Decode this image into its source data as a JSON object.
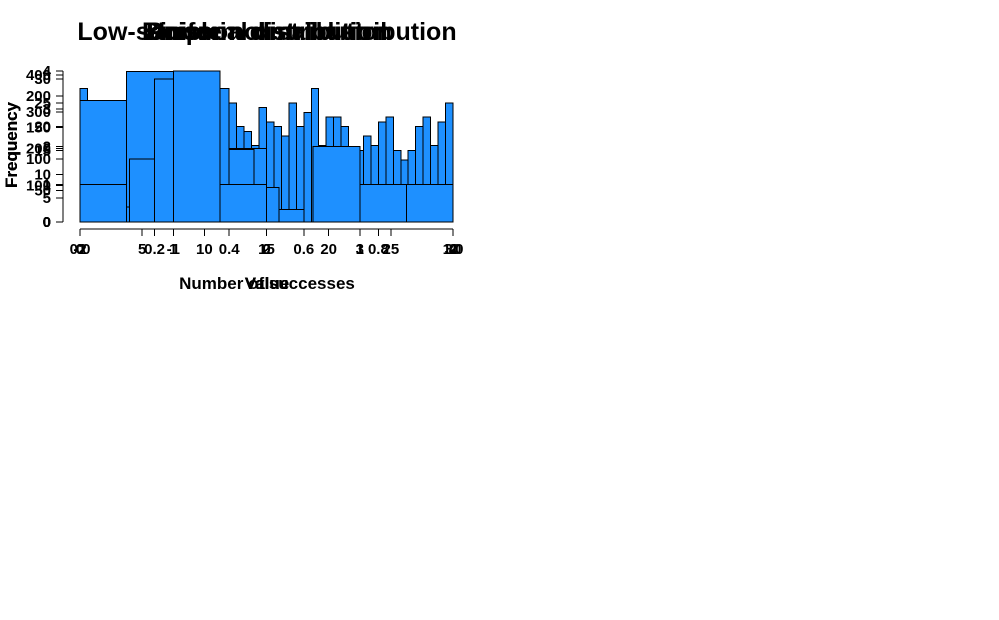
{
  "colors": {
    "background": "#FFFFFF",
    "bar_fill": "#1E90FF",
    "bar_border": "#000000",
    "axis_color": "#000000",
    "text_color": "#000000"
  },
  "chart_data": [
    {
      "id": "uniform",
      "type": "bar",
      "title": "Uniform distribution",
      "xlabel": "Value",
      "ylabel": "Frequency",
      "bin_start": 0,
      "bin_width": 0.02,
      "values": [
        28,
        24,
        16,
        15,
        16,
        20,
        21,
        13,
        17,
        30,
        20,
        19,
        17,
        29,
        31,
        19,
        20,
        16,
        14,
        24,
        25,
        20,
        19,
        16,
        24,
        21,
        20,
        18,
        25,
        20,
        23,
        28,
        16,
        22,
        22,
        20,
        13,
        15,
        18,
        16,
        21,
        22,
        15,
        13,
        15,
        20,
        22,
        16,
        21,
        25
      ],
      "xlim": [
        0,
        1
      ],
      "ylim": [
        0,
        30
      ],
      "xticks": {
        "values": [
          0,
          0.2,
          0.4,
          0.6,
          0.8,
          1
        ],
        "labels": [
          "0.0",
          "0.2",
          "0.4",
          "0.6",
          "0.8",
          "1.0"
        ]
      },
      "yticks": {
        "values": [
          0,
          5,
          10,
          15,
          20,
          25,
          30
        ],
        "labels": [
          "0",
          "5",
          "10",
          "15",
          "20",
          "25",
          "30"
        ]
      },
      "grid": "off",
      "legend": "none"
    },
    {
      "id": "binomial",
      "type": "bar",
      "title": "Binomial distribution",
      "xlabel": "Number of successes",
      "ylabel": "Frequency",
      "bin_start": 0,
      "bin_width": 0.5,
      "values": [
        330,
        410,
        0,
        200,
        0,
        45,
        0,
        11
      ],
      "xlim": [
        0,
        4
      ],
      "ylim": [
        0,
        400
      ],
      "xticks": {
        "values": [
          0,
          1,
          2,
          3,
          4
        ],
        "labels": [
          "0",
          "1",
          "2",
          "3",
          "4"
        ]
      },
      "yticks": {
        "values": [
          0,
          100,
          200,
          300,
          400
        ],
        "labels": [
          "0",
          "100",
          "200",
          "300",
          "400"
        ]
      },
      "grid": "off",
      "legend": "none"
    },
    {
      "id": "poisson",
      "type": "bar",
      "title": "Poisson distribution",
      "xlabel": "Value",
      "ylabel": "Frequency",
      "bin_start": 0,
      "bin_width": 2,
      "values": [
        8,
        24,
        100,
        227,
        238,
        212,
        115,
        55,
        20,
        0,
        0,
        0,
        0,
        0,
        0
      ],
      "xlim": [
        0,
        30
      ],
      "ylim": [
        0,
        200
      ],
      "xticks": {
        "values": [
          0,
          5,
          10,
          15,
          20,
          25,
          30
        ],
        "labels": [
          "0",
          "5",
          "10",
          "15",
          "20",
          "25",
          "30"
        ]
      },
      "yticks": {
        "values": [
          0,
          50,
          100,
          150,
          200
        ],
        "labels": [
          "0",
          "50",
          "100",
          "150",
          "200"
        ]
      },
      "grid": "off",
      "legend": "none"
    },
    {
      "id": "normal",
      "type": "bar",
      "title": "Low-sample normal distribution",
      "xlabel": "Value",
      "ylabel": "Frequency",
      "bin_start": -2,
      "bin_width": 0.5,
      "values": [
        1,
        0,
        4,
        1,
        0,
        2,
        1,
        1
      ],
      "xlim": [
        -2,
        2
      ],
      "ylim": [
        0,
        4
      ],
      "xticks": {
        "values": [
          -2,
          -1,
          0,
          1,
          2
        ],
        "labels": [
          "-2",
          "-1",
          "0",
          "1",
          "2"
        ]
      },
      "yticks": {
        "values": [
          0,
          1,
          2,
          3,
          4
        ],
        "labels": [
          "0",
          "1",
          "2",
          "3",
          "4"
        ]
      },
      "grid": "off",
      "legend": "none"
    }
  ]
}
